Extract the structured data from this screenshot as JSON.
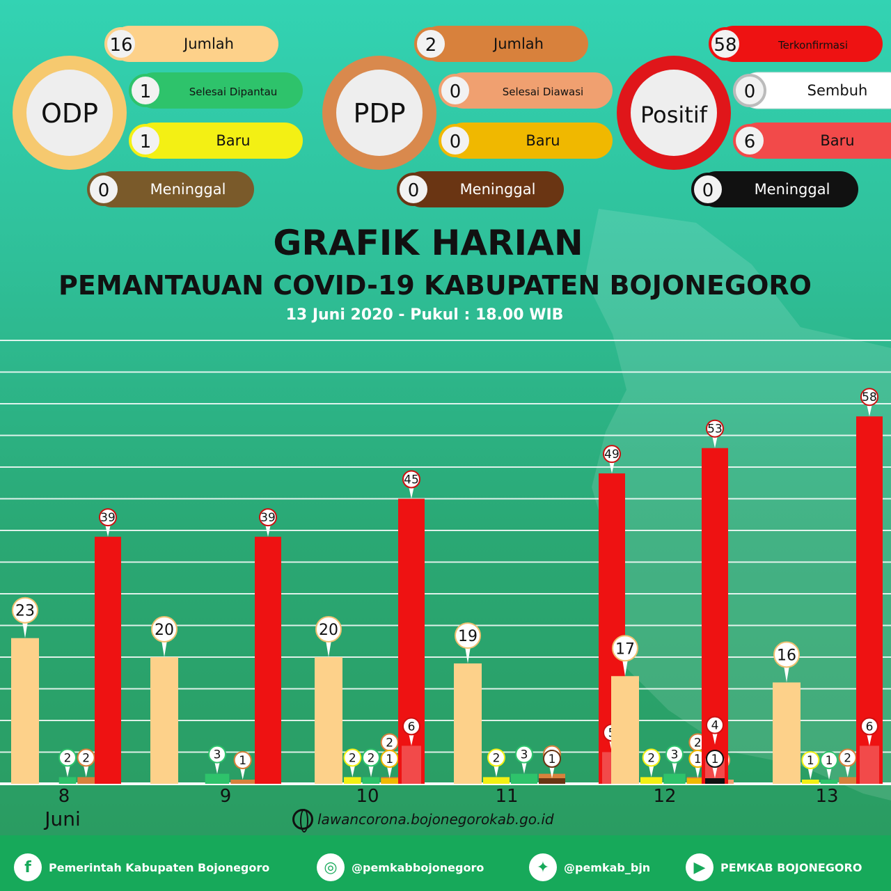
{
  "summary": {
    "odp": {
      "label": "ODP",
      "ring": "#f6c96f",
      "items": [
        {
          "value": "16",
          "label": "Jumlah",
          "color": "#fdd18a",
          "text": "#111"
        },
        {
          "value": "1",
          "label": "Selesai Dipantau",
          "color": "#2ec36b",
          "text": "#111"
        },
        {
          "value": "1",
          "label": "Baru",
          "color": "#f3f014",
          "text": "#111"
        },
        {
          "value": "0",
          "label": "Meninggal",
          "color": "#7a5a2a",
          "text": "#fff"
        }
      ]
    },
    "pdp": {
      "label": "PDP",
      "ring": "#d9894d",
      "items": [
        {
          "value": "2",
          "label": "Jumlah",
          "color": "#d8813c",
          "text": "#111"
        },
        {
          "value": "0",
          "label": "Selesai Diawasi",
          "color": "#f0a070",
          "text": "#111"
        },
        {
          "value": "0",
          "label": "Baru",
          "color": "#f0b800",
          "text": "#111"
        },
        {
          "value": "0",
          "label": "Meninggal",
          "color": "#6a3513",
          "text": "#fff"
        }
      ]
    },
    "positif": {
      "label": "Positif",
      "ring": "#e0161a",
      "items": [
        {
          "value": "58",
          "label": "Terkonfirmasi",
          "color": "#ee1212",
          "text": "#111"
        },
        {
          "value": "0",
          "label": "Sembuh",
          "color": "#ffffff",
          "text": "#111"
        },
        {
          "value": "6",
          "label": "Baru",
          "color": "#f24a4a",
          "text": "#111"
        },
        {
          "value": "0",
          "label": "Meninggal",
          "color": "#111111",
          "text": "#fff"
        }
      ]
    }
  },
  "title": "GRAFIK HARIAN",
  "subtitle": "PEMANTAUAN COVID-19 KABUPATEN BOJONEGORO",
  "date_line": "13 Juni 2020 - Pukul : 18.00 WIB",
  "month_label": "Juni",
  "website": "lawancorona.bojonegorokab.go.id",
  "footer": [
    {
      "icon": "f",
      "icon_name": "facebook-icon",
      "text": "Pemerintah Kabupaten Bojonegoro"
    },
    {
      "icon": "◎",
      "icon_name": "instagram-icon",
      "text": "@pemkabbojonegoro"
    },
    {
      "icon": "✦",
      "icon_name": "twitter-icon",
      "text": "@pemkab_bjn"
    },
    {
      "icon": "▶",
      "icon_name": "youtube-icon",
      "text": "PEMKAB BOJONEGORO"
    }
  ],
  "chart_data": {
    "type": "bar",
    "categories": [
      "8",
      "9",
      "10",
      "11",
      "12",
      "13"
    ],
    "series": [
      {
        "name": "ODP Jumlah",
        "color": "#fdd18a",
        "values": [
          23,
          20,
          20,
          19,
          17,
          16
        ]
      },
      {
        "name": "ODP Baru",
        "color": "#f3f014",
        "values": [
          0,
          0,
          2,
          2,
          2,
          1
        ]
      },
      {
        "name": "ODP Selesai Dipantau",
        "color": "#2ec36b",
        "values": [
          2,
          3,
          2,
          3,
          3,
          1
        ]
      },
      {
        "name": "PDP Meninggal",
        "color": "#6a3513",
        "values": [
          0,
          0,
          0,
          1,
          0,
          0
        ]
      },
      {
        "name": "PDP Baru",
        "color": "#f0b800",
        "values": [
          0,
          0,
          1,
          0,
          1,
          0
        ]
      },
      {
        "name": "PDP Jumlah",
        "color": "#d8813c",
        "values": [
          2,
          1,
          2,
          3,
          2,
          2
        ]
      },
      {
        "name": "PDP Selesai Diawasi",
        "color": "#f0a070",
        "values": [
          0,
          1,
          0,
          0,
          1,
          0
        ]
      },
      {
        "name": "Positif Baru",
        "color": "#f24a4a",
        "values": [
          0,
          0,
          6,
          5,
          4,
          6
        ]
      },
      {
        "name": "Positif Meninggal",
        "color": "#111111",
        "values": [
          0,
          0,
          0,
          0,
          1,
          0
        ]
      },
      {
        "name": "Positif Terkonfirmasi",
        "color": "#ee1212",
        "values": [
          39,
          39,
          45,
          49,
          53,
          58
        ]
      },
      {
        "name": "Positif Sembuh",
        "color": "#ffffff",
        "values": [
          0,
          0,
          0,
          1,
          0,
          0
        ]
      }
    ],
    "xlabel": "",
    "ylabel": "",
    "ylim": [
      0,
      70
    ],
    "grid": true
  }
}
